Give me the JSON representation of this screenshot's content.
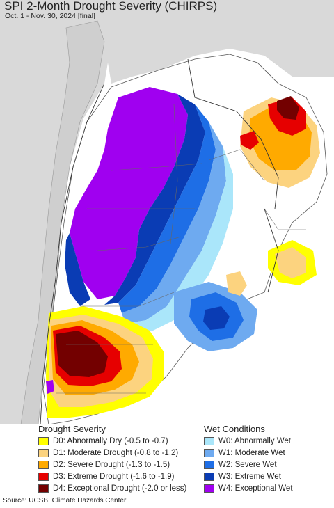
{
  "header": {
    "title": "SPI 2-Month Drought Severity (CHIRPS)",
    "subtitle": "Oct. 1 - Nov. 30, 2024 [final]"
  },
  "legend": {
    "drought": {
      "heading": "Drought Severity",
      "items": [
        {
          "label": "D0: Abnormally Dry (-0.5 to -0.7)",
          "color": "#ffff00"
        },
        {
          "label": "D1: Moderate Drought (-0.8 to -1.2)",
          "color": "#fcd37f"
        },
        {
          "label": "D2: Severe Drought (-1.3 to -1.5)",
          "color": "#ffaa00"
        },
        {
          "label": "D3: Extreme Drought (-1.6 to -1.9)",
          "color": "#e60000"
        },
        {
          "label": "D4: Exceptional Drought (-2.0 or less)",
          "color": "#730000"
        }
      ]
    },
    "wet": {
      "heading": "Wet Conditions",
      "items": [
        {
          "label": "W0: Abnormally Wet",
          "color": "#aae6fa"
        },
        {
          "label": "W1: Moderate Wet",
          "color": "#6eaaf0"
        },
        {
          "label": "W2: Severe Wet",
          "color": "#1e6ee6"
        },
        {
          "label": "W3: Extreme Wet",
          "color": "#0a3cb4"
        },
        {
          "label": "W4: Exceptional Wet",
          "color": "#a000f0"
        }
      ]
    }
  },
  "source": "Source: UCSB, Climate Hazards Center"
}
